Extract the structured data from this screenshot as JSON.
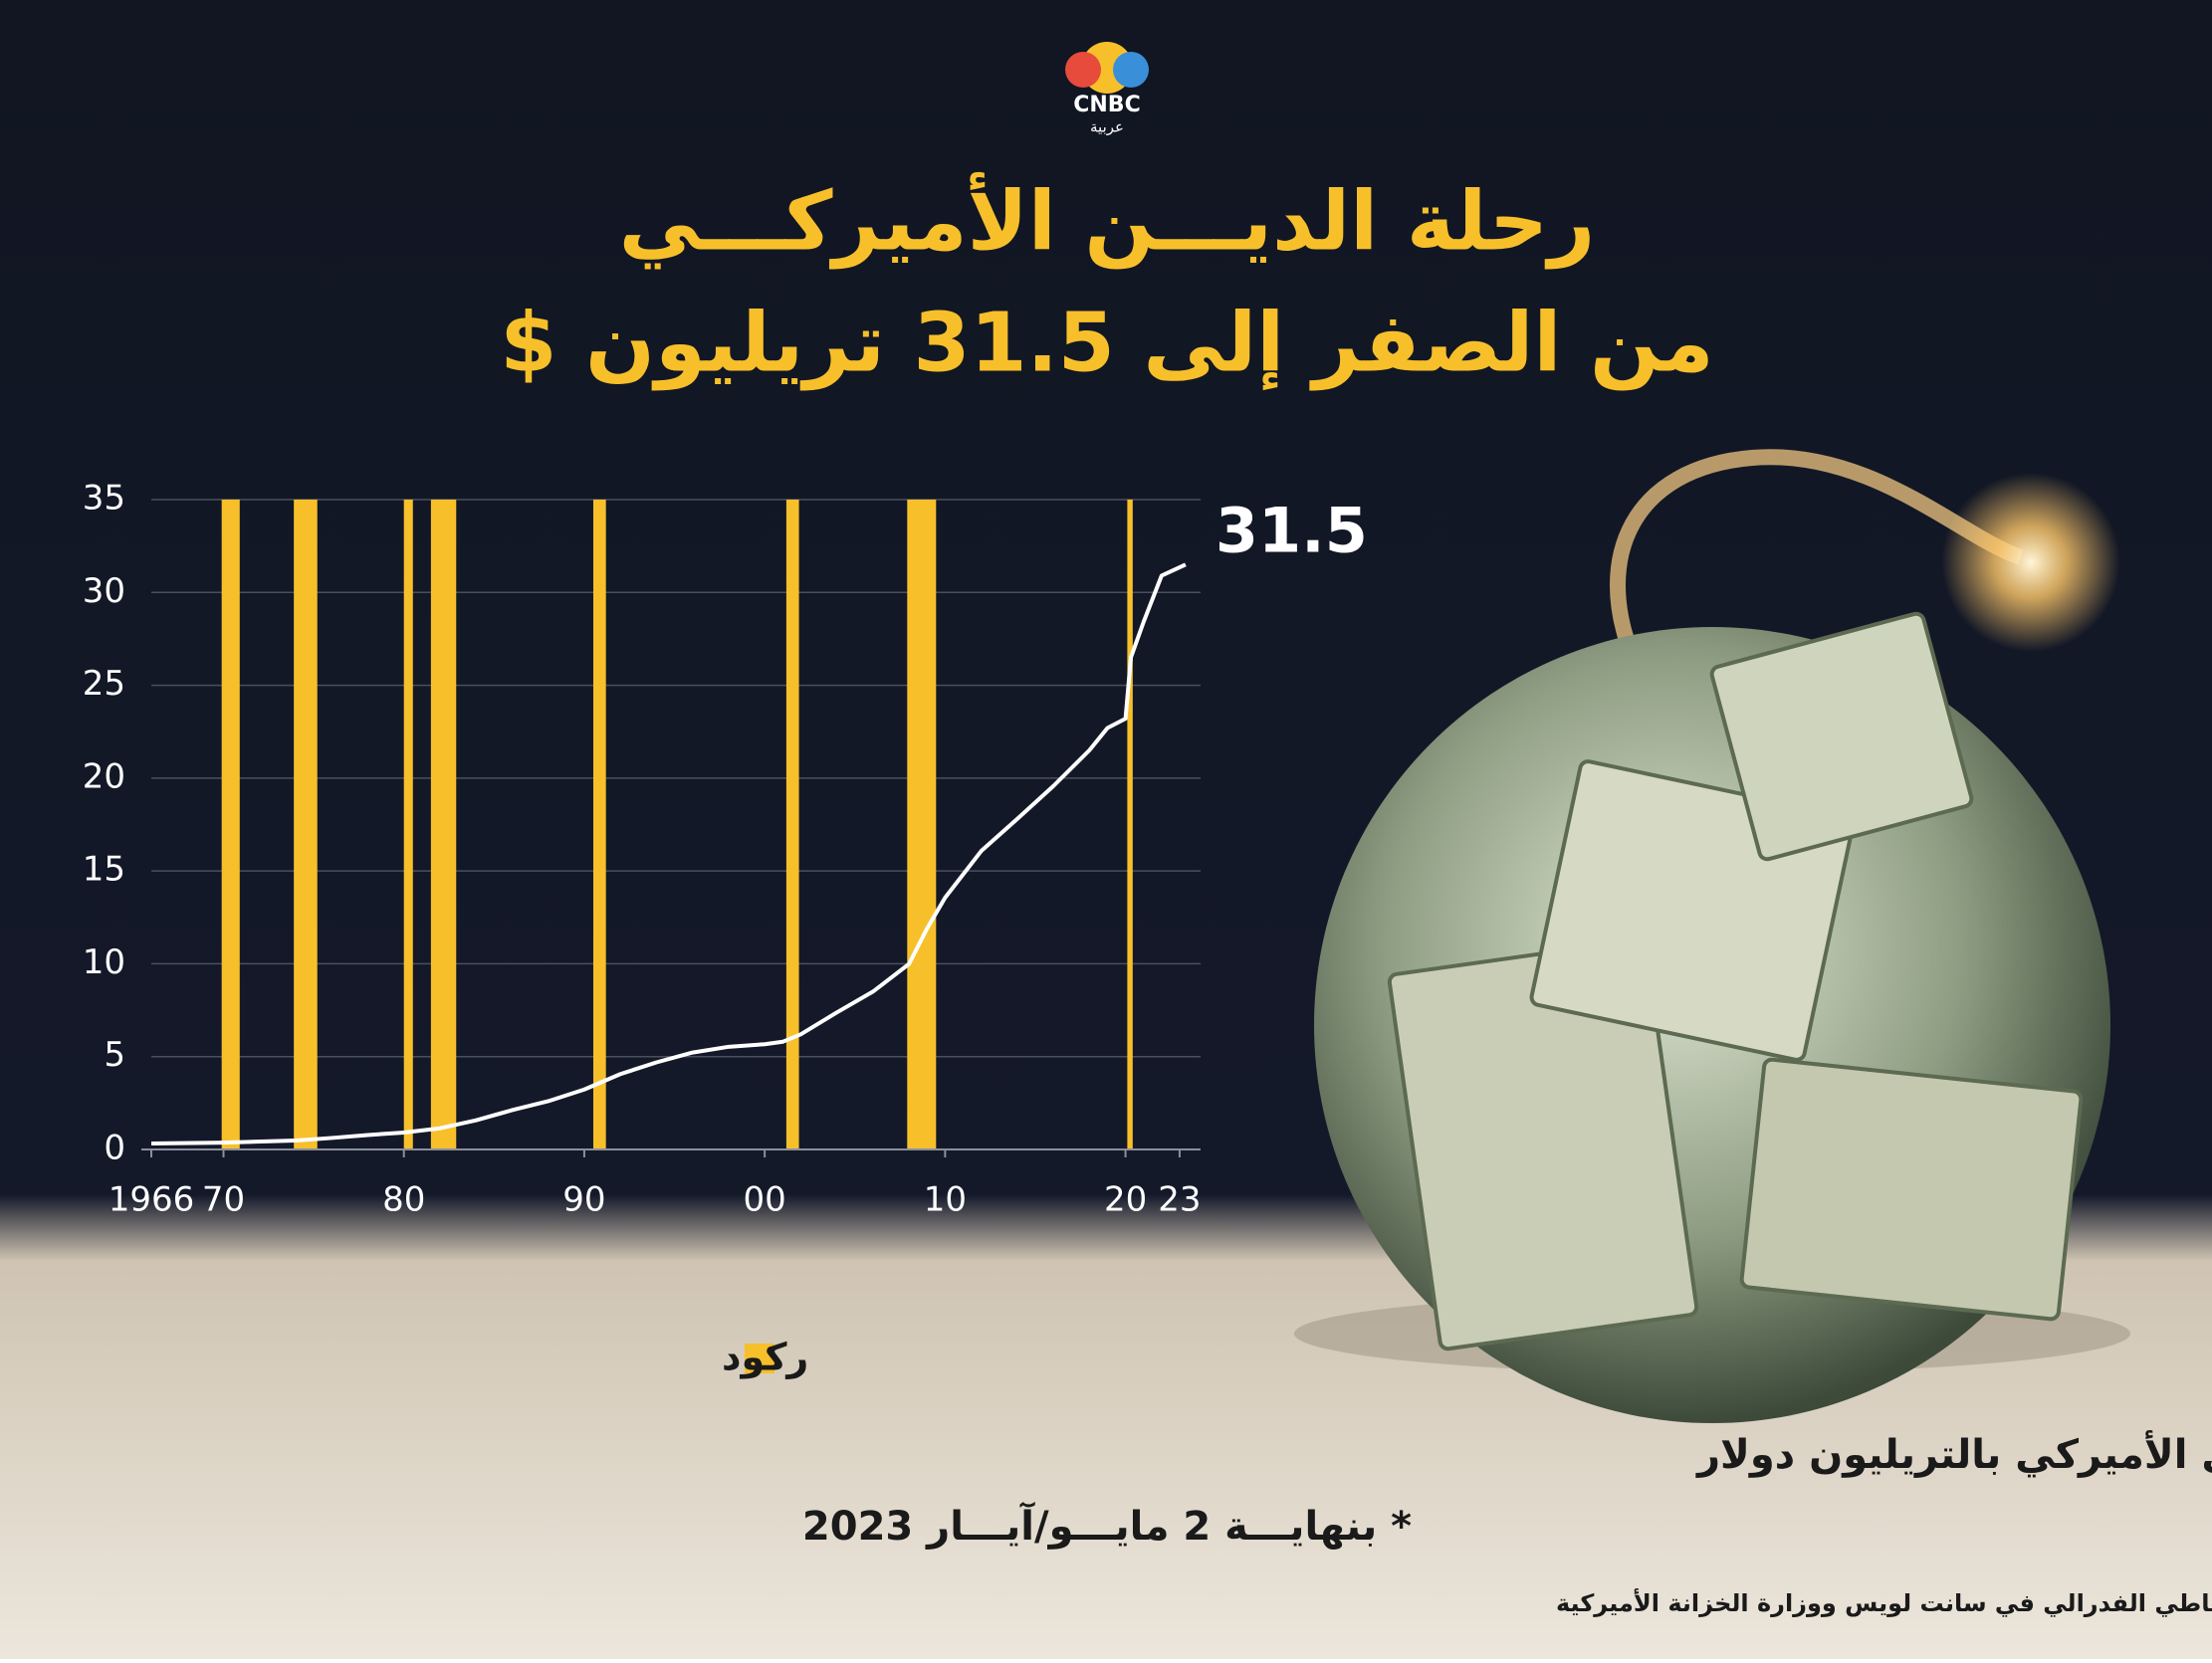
{
  "logo": {
    "brand": "CNBC",
    "sub": "عربية"
  },
  "chart_data": {
    "type": "line",
    "title": "رحلة الديـــن الأميركـــي",
    "subtitle": "من الصفر إلى 31.5 تريليون $",
    "x": [
      1966,
      1970,
      1974,
      1976,
      1978,
      1980,
      1982,
      1984,
      1986,
      1988,
      1990,
      1992,
      1994,
      1996,
      1998,
      2000,
      2001,
      2002,
      2004,
      2006,
      2008,
      2009,
      2010,
      2012,
      2014,
      2016,
      2018,
      2019,
      2020,
      2020.3,
      2021,
      2022,
      2023.33
    ],
    "values": [
      0.32,
      0.37,
      0.48,
      0.62,
      0.78,
      0.91,
      1.14,
      1.57,
      2.12,
      2.6,
      3.23,
      4.06,
      4.69,
      5.22,
      5.53,
      5.67,
      5.8,
      6.2,
      7.38,
      8.5,
      9.99,
      11.9,
      13.56,
      16.07,
      17.8,
      19.57,
      21.5,
      22.7,
      23.2,
      26.5,
      28.4,
      30.9,
      31.5
    ],
    "color": "#ffffff",
    "recessions": [
      {
        "start": 1969.9,
        "end": 1970.9
      },
      {
        "start": 1973.9,
        "end": 1975.2
      },
      {
        "start": 1980.0,
        "end": 1980.5
      },
      {
        "start": 1981.5,
        "end": 1982.9
      },
      {
        "start": 1990.5,
        "end": 1991.2
      },
      {
        "start": 2001.2,
        "end": 2001.9
      },
      {
        "start": 2007.9,
        "end": 2009.5
      },
      {
        "start": 2020.1,
        "end": 2020.4
      }
    ],
    "recession_color": "#f7c02b",
    "recession_label": "ركود",
    "xlim": [
      1966,
      2023.5
    ],
    "xticks": [
      1966,
      {
        "value": 1970,
        "label": "70"
      },
      {
        "value": 1980,
        "label": "80"
      },
      {
        "value": 1990,
        "label": "90"
      },
      {
        "value": 2000,
        "label": "00"
      },
      {
        "value": 2010,
        "label": "10"
      },
      {
        "value": 2020,
        "label": "20"
      },
      {
        "value": 2023,
        "label": "23"
      }
    ],
    "ylim": [
      0,
      35
    ],
    "yticks": [
      0,
      5,
      10,
      15,
      20,
      25,
      30,
      35
    ],
    "grid": true,
    "description": "إجمالي الدين العام الفدرالي الأميركي بالتريليون دولار",
    "note": "* بنهايـــة 2 مايـــو/آيـــار 2023",
    "source": "المصدر: بنك الاحتياطي الفدرالي في سانت لويس ووزارة الخزانة الأميركية"
  }
}
